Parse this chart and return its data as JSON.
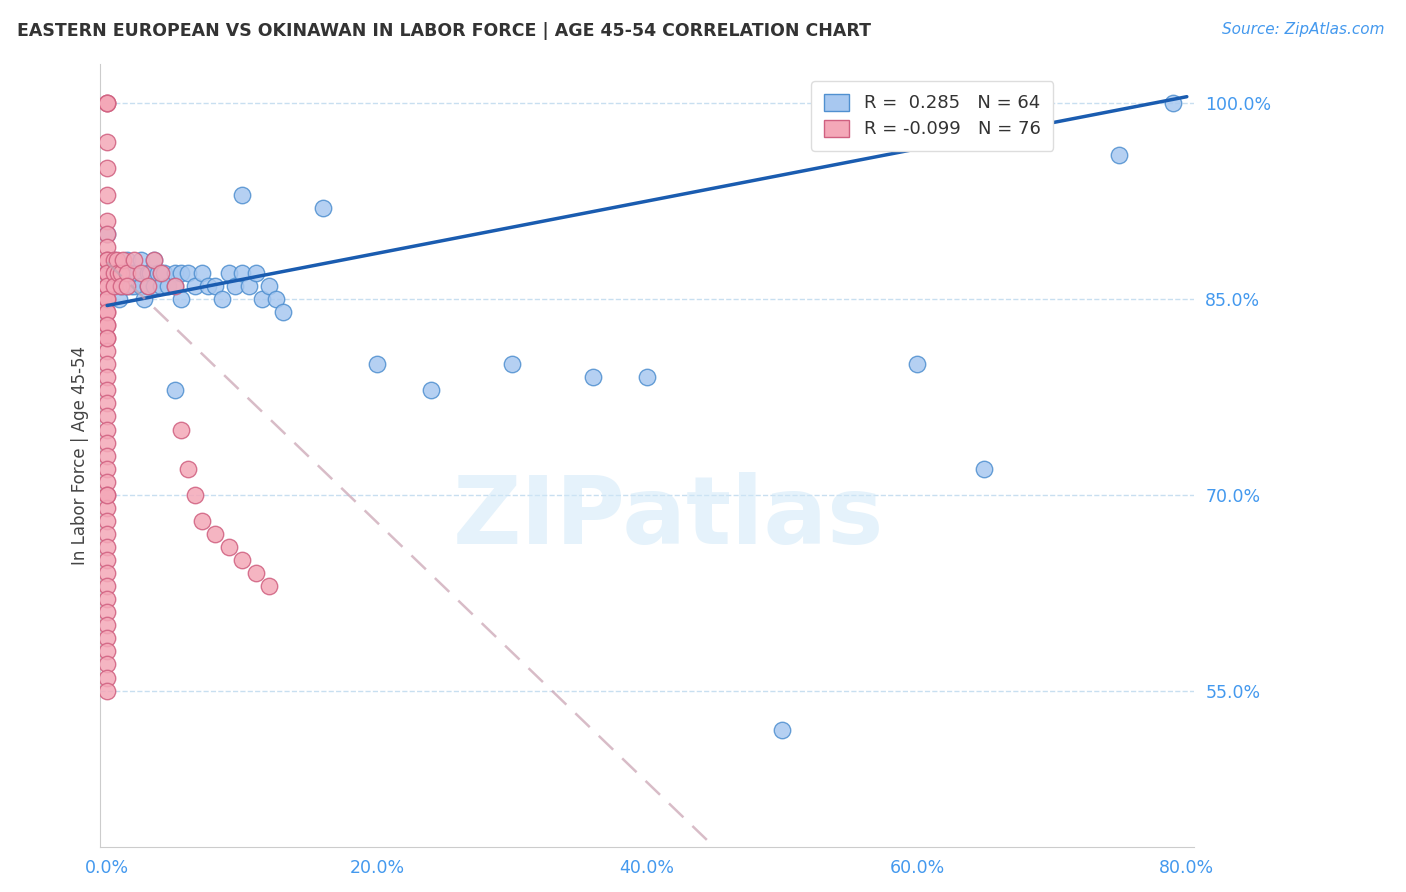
{
  "title": "EASTERN EUROPEAN VS OKINAWAN IN LABOR FORCE | AGE 45-54 CORRELATION CHART",
  "source": "Source: ZipAtlas.com",
  "ylabel": "In Labor Force | Age 45-54",
  "watermark": "ZIPatlas",
  "blue_R": 0.285,
  "blue_N": 64,
  "pink_R": -0.099,
  "pink_N": 76,
  "xlim": [
    -0.005,
    0.805
  ],
  "ylim": [
    0.43,
    1.03
  ],
  "xticks": [
    0.0,
    0.2,
    0.4,
    0.6,
    0.8
  ],
  "yticks": [
    0.55,
    0.7,
    0.85,
    1.0
  ],
  "ytick_labels": [
    "55.0%",
    "70.0%",
    "85.0%",
    "100.0%"
  ],
  "xtick_labels": [
    "0.0%",
    "20.0%",
    "40.0%",
    "60.0%",
    "80.0%"
  ],
  "blue_color": "#a8c8f0",
  "pink_color": "#f4a8b8",
  "blue_edge_color": "#5090d0",
  "pink_edge_color": "#d06080",
  "blue_line_color": "#1a5cb0",
  "pink_line_color": "#c8a0b0",
  "grid_color": "#c8dff0",
  "title_color": "#333333",
  "axis_tick_color": "#4499ee",
  "blue_scatter_x": [
    0.0,
    0.0,
    0.0,
    0.005,
    0.005,
    0.007,
    0.008,
    0.009,
    0.01,
    0.01,
    0.012,
    0.013,
    0.015,
    0.015,
    0.017,
    0.018,
    0.02,
    0.02,
    0.022,
    0.025,
    0.025,
    0.027,
    0.03,
    0.03,
    0.032,
    0.035,
    0.035,
    0.038,
    0.04,
    0.04,
    0.042,
    0.045,
    0.05,
    0.05,
    0.055,
    0.055,
    0.06,
    0.065,
    0.07,
    0.075,
    0.08,
    0.085,
    0.09,
    0.095,
    0.1,
    0.105,
    0.11,
    0.115,
    0.12,
    0.125,
    0.13,
    0.05,
    0.1,
    0.16,
    0.2,
    0.24,
    0.3,
    0.36,
    0.4,
    0.5,
    0.6,
    0.65,
    0.75,
    0.79
  ],
  "blue_scatter_y": [
    0.9,
    0.87,
    0.85,
    0.88,
    0.86,
    0.87,
    0.86,
    0.85,
    0.87,
    0.86,
    0.87,
    0.86,
    0.88,
    0.86,
    0.87,
    0.86,
    0.87,
    0.86,
    0.87,
    0.88,
    0.86,
    0.85,
    0.87,
    0.86,
    0.87,
    0.88,
    0.86,
    0.87,
    0.87,
    0.86,
    0.87,
    0.86,
    0.87,
    0.86,
    0.87,
    0.85,
    0.87,
    0.86,
    0.87,
    0.86,
    0.86,
    0.85,
    0.87,
    0.86,
    0.87,
    0.86,
    0.87,
    0.85,
    0.86,
    0.85,
    0.84,
    0.78,
    0.93,
    0.92,
    0.8,
    0.78,
    0.8,
    0.79,
    0.79,
    0.52,
    0.8,
    0.72,
    0.96,
    1.0
  ],
  "pink_scatter_x": [
    0.0,
    0.0,
    0.0,
    0.0,
    0.0,
    0.0,
    0.0,
    0.0,
    0.0,
    0.0,
    0.0,
    0.0,
    0.0,
    0.0,
    0.0,
    0.0,
    0.0,
    0.0,
    0.0,
    0.0,
    0.0,
    0.0,
    0.0,
    0.0,
    0.0,
    0.0,
    0.0,
    0.0,
    0.0,
    0.0,
    0.0,
    0.0,
    0.0,
    0.0,
    0.0,
    0.0,
    0.0,
    0.0,
    0.0,
    0.0,
    0.0,
    0.0,
    0.0,
    0.0,
    0.0,
    0.0,
    0.0,
    0.0,
    0.0,
    0.0,
    0.0,
    0.005,
    0.005,
    0.005,
    0.007,
    0.008,
    0.01,
    0.01,
    0.012,
    0.015,
    0.015,
    0.02,
    0.025,
    0.03,
    0.035,
    0.04,
    0.05,
    0.055,
    0.06,
    0.065,
    0.07,
    0.08,
    0.09,
    0.1,
    0.11,
    0.12
  ],
  "pink_scatter_y": [
    1.0,
    1.0,
    1.0,
    0.97,
    0.95,
    0.93,
    0.91,
    0.9,
    0.89,
    0.88,
    0.87,
    0.86,
    0.85,
    0.84,
    0.83,
    0.82,
    0.81,
    0.8,
    0.79,
    0.78,
    0.77,
    0.76,
    0.75,
    0.74,
    0.73,
    0.72,
    0.71,
    0.7,
    0.69,
    0.68,
    0.67,
    0.66,
    0.65,
    0.64,
    0.63,
    0.62,
    0.61,
    0.6,
    0.59,
    0.58,
    0.57,
    0.56,
    0.55,
    0.88,
    0.87,
    0.86,
    0.85,
    0.84,
    0.83,
    0.82,
    0.7,
    0.88,
    0.87,
    0.86,
    0.88,
    0.87,
    0.87,
    0.86,
    0.88,
    0.87,
    0.86,
    0.88,
    0.87,
    0.86,
    0.88,
    0.87,
    0.86,
    0.75,
    0.72,
    0.7,
    0.68,
    0.67,
    0.66,
    0.65,
    0.64,
    0.63
  ],
  "blue_trend_x": [
    0.0,
    0.8
  ],
  "blue_trend_y": [
    0.845,
    1.005
  ],
  "pink_trend_x": [
    0.0,
    0.45
  ],
  "pink_trend_y": [
    0.878,
    0.43
  ]
}
